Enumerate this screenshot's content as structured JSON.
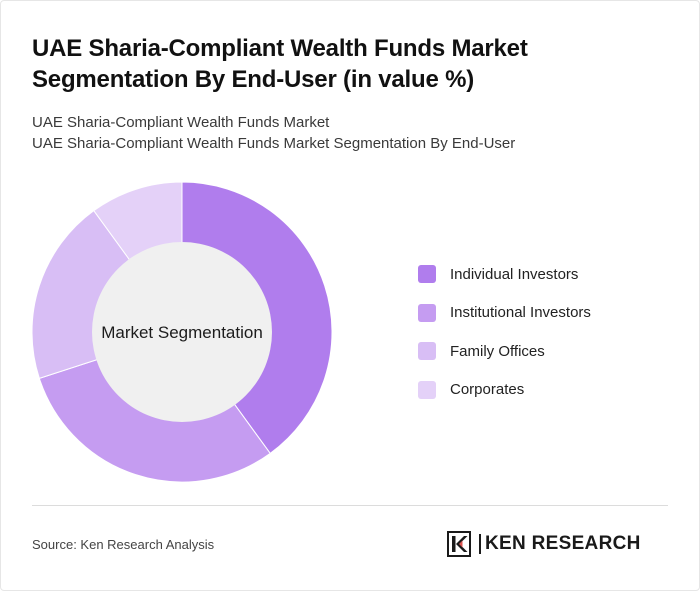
{
  "title": "UAE Sharia-Compliant Wealth Funds Market Segmentation By End-User (in value %)",
  "subtitle_line1": "UAE Sharia-Compliant Wealth Funds Market",
  "subtitle_line2": "UAE Sharia-Compliant Wealth Funds Market Segmentation By End-User",
  "source": "Source: Ken Research Analysis",
  "logo": {
    "left": "KEN",
    "right": "RESEARCH",
    "icon": "ken-research-k-logo-icon"
  },
  "chart_data": {
    "type": "pie",
    "variant": "donut",
    "center_label": "Market Segmentation",
    "categories": [
      "Individual Investors",
      "Institutional Investors",
      "Family Offices",
      "Corporates"
    ],
    "values": [
      40,
      30,
      20,
      10
    ],
    "colors": [
      "#b07ded",
      "#c59cf1",
      "#d8bef5",
      "#e4d1f8"
    ],
    "legend_position": "right",
    "center_fill": "#f0f0f0"
  }
}
